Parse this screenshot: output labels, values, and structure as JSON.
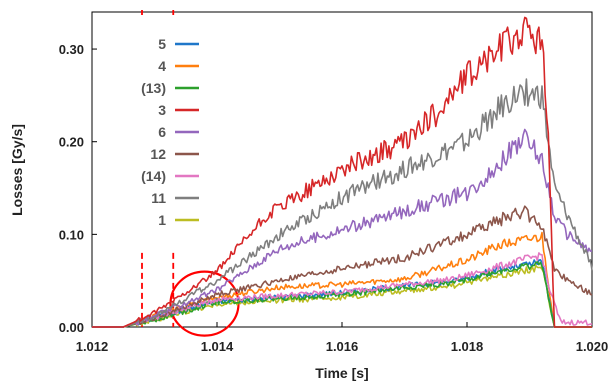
{
  "chart_data": {
    "type": "line",
    "xlabel": "Time [s]",
    "ylabel": "Losses [Gy/s]",
    "xlim": [
      1.012,
      1.02
    ],
    "ylim": [
      0.0,
      0.34
    ],
    "x_ticks": [
      "1.012",
      "1.014",
      "1.016",
      "1.018",
      "1.020"
    ],
    "y_ticks": [
      "0.00",
      "0.10",
      "0.20",
      "0.30"
    ],
    "grid": false,
    "legend_position": "top-left",
    "markers": {
      "dashed_lines_x": [
        1.0128,
        1.0133
      ],
      "dashed_color": "#ff0000",
      "circle_center": [
        1.0138,
        0.022
      ],
      "circle_color": "#ff0000"
    },
    "series": [
      {
        "name": "5",
        "color": "#1f77c9",
        "x": [
          1.0125,
          1.013,
          1.014,
          1.016,
          1.0178,
          1.0185,
          1.0192,
          1.0194,
          1.02
        ],
        "y": [
          0.0,
          0.01,
          0.028,
          0.037,
          0.05,
          0.062,
          0.07,
          0.0,
          0.0
        ]
      },
      {
        "name": "4",
        "color": "#ff7f0e",
        "x": [
          1.0125,
          1.013,
          1.014,
          1.015,
          1.016,
          1.017,
          1.018,
          1.0185,
          1.0192,
          1.0194,
          1.02
        ],
        "y": [
          0.0,
          0.012,
          0.032,
          0.043,
          0.046,
          0.052,
          0.072,
          0.088,
          0.098,
          0.0,
          0.0
        ]
      },
      {
        "name": "(13)",
        "color": "#2ca02c",
        "x": [
          1.0125,
          1.013,
          1.014,
          1.016,
          1.0178,
          1.0185,
          1.0192,
          1.0194,
          1.02
        ],
        "y": [
          0.0,
          0.008,
          0.027,
          0.035,
          0.048,
          0.06,
          0.068,
          0.0,
          0.0
        ]
      },
      {
        "name": "3",
        "color": "#d62728",
        "x": [
          1.0125,
          1.013,
          1.014,
          1.0148,
          1.0155,
          1.016,
          1.017,
          1.0175,
          1.018,
          1.0185,
          1.0189,
          1.0192,
          1.0193,
          1.0194,
          1.02
        ],
        "y": [
          0.0,
          0.015,
          0.06,
          0.12,
          0.15,
          0.17,
          0.2,
          0.23,
          0.27,
          0.3,
          0.32,
          0.31,
          0.2,
          0.0,
          0.0
        ]
      },
      {
        "name": "6",
        "color": "#9467bd",
        "x": [
          1.0125,
          1.013,
          1.014,
          1.015,
          1.016,
          1.017,
          1.018,
          1.0185,
          1.0189,
          1.0192,
          1.0194,
          1.0196,
          1.02
        ],
        "y": [
          0.0,
          0.012,
          0.04,
          0.085,
          0.105,
          0.125,
          0.145,
          0.175,
          0.205,
          0.18,
          0.12,
          0.1,
          0.08
        ]
      },
      {
        "name": "12",
        "color": "#8c564b",
        "x": [
          1.0125,
          1.013,
          1.014,
          1.015,
          1.016,
          1.017,
          1.018,
          1.0185,
          1.0189,
          1.0192,
          1.0194,
          1.02
        ],
        "y": [
          0.0,
          0.01,
          0.035,
          0.05,
          0.063,
          0.075,
          0.1,
          0.115,
          0.125,
          0.11,
          0.06,
          0.035
        ]
      },
      {
        "name": "(14)",
        "color": "#e377c2",
        "x": [
          1.0125,
          1.013,
          1.014,
          1.016,
          1.0178,
          1.0185,
          1.0192,
          1.0193,
          1.0195,
          1.02
        ],
        "y": [
          0.0,
          0.01,
          0.03,
          0.038,
          0.052,
          0.065,
          0.078,
          0.045,
          0.005,
          0.005
        ]
      },
      {
        "name": "11",
        "color": "#7f7f7f",
        "x": [
          1.0125,
          1.013,
          1.014,
          1.015,
          1.016,
          1.017,
          1.018,
          1.0185,
          1.0189,
          1.0192,
          1.0194,
          1.02
        ],
        "y": [
          0.0,
          0.012,
          0.05,
          0.1,
          0.14,
          0.17,
          0.2,
          0.235,
          0.255,
          0.25,
          0.15,
          0.065
        ]
      },
      {
        "name": "1",
        "color": "#bcbd22",
        "x": [
          1.0125,
          1.013,
          1.014,
          1.016,
          1.0178,
          1.0185,
          1.0192,
          1.0194,
          1.02
        ],
        "y": [
          0.0,
          0.008,
          0.025,
          0.032,
          0.045,
          0.055,
          0.065,
          0.0,
          0.0
        ]
      }
    ]
  }
}
